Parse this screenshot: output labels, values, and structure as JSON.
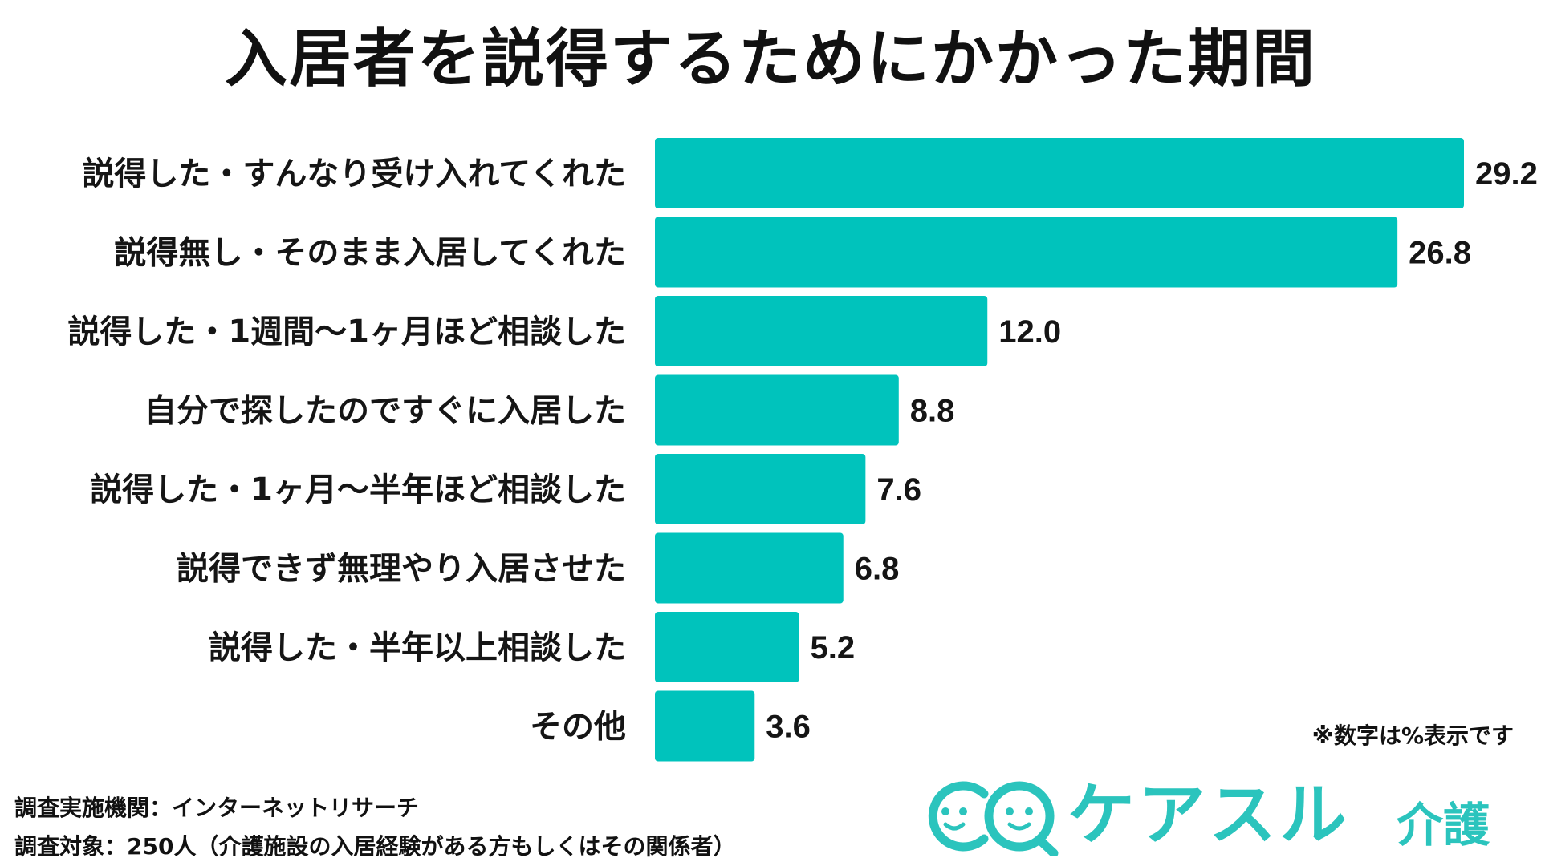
{
  "chart_data": {
    "type": "bar",
    "orientation": "horizontal",
    "title": "入居者を説得するためにかかった期間",
    "categories": [
      "説得した・すんなり受け入れてくれた",
      "説得無し・そのまま入居してくれた",
      "説得した・1週間～1ヶ月ほど相談した",
      "自分で探したのですぐに入居した",
      "説得した・1ヶ月～半年ほど相談した",
      "説得できず無理やり入居させた",
      "説得した・半年以上相談した",
      "その他"
    ],
    "values": [
      29.2,
      26.8,
      12.0,
      8.8,
      7.6,
      6.8,
      5.2,
      3.6
    ],
    "value_labels": [
      "29.2",
      "26.8",
      "12.0",
      "8.8",
      "7.6",
      "6.8",
      "5.2",
      "3.6"
    ],
    "xlim": [
      0,
      29.2
    ],
    "grid": false,
    "bar_color": "#00c3bc"
  },
  "note": "※数字は%表示です",
  "footnotes": {
    "survey_method": "調査実施機関：インターネットリサーチ",
    "survey_target": "調査対象：250人（介護施設の入居経験がある方もしくはその関係者）"
  },
  "logo": {
    "text": "ケアスル",
    "sub": "介護",
    "color": "#2bc4bd",
    "icon": "smiley-faces-icon"
  }
}
